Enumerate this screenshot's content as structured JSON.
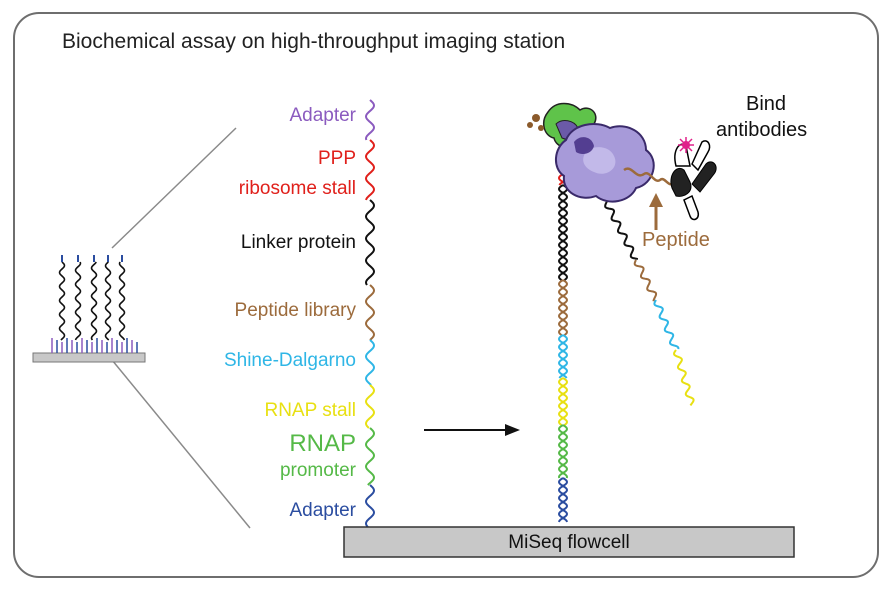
{
  "title": "Biochemical assay on high-throughput imaging station",
  "segments": [
    {
      "label": "Adapter",
      "color": "#8b5bbf"
    },
    {
      "label": "PPP",
      "color": "#e0201b"
    },
    {
      "label": "ribosome stall",
      "color": "#e0201b"
    },
    {
      "label": "Linker protein",
      "color": "#111111"
    },
    {
      "label": "Peptide library",
      "color": "#9c6b3c"
    },
    {
      "label": "Shine-Dalgarno",
      "color": "#2fb6e6"
    },
    {
      "label": "RNAP stall",
      "color": "#e8e012"
    },
    {
      "label": "RNAP",
      "color": "#55b947"
    },
    {
      "label": "promoter",
      "color": "#55b947"
    },
    {
      "label": "Adapter",
      "color": "#2b4da0"
    }
  ],
  "flowcell_label": "MiSeq flowcell",
  "antibody_label_line1": "Bind",
  "antibody_label_line2": "antibodies",
  "peptide_label": "Peptide",
  "colors": {
    "frame": "#6e6e6e",
    "flowcell_fill": "#c8c8c8",
    "ribosome": "#9d8fd6",
    "ribosome_dark": "#5b3f9a",
    "rnap_green": "#5fc34a",
    "peptide": "#9c6b3c"
  }
}
